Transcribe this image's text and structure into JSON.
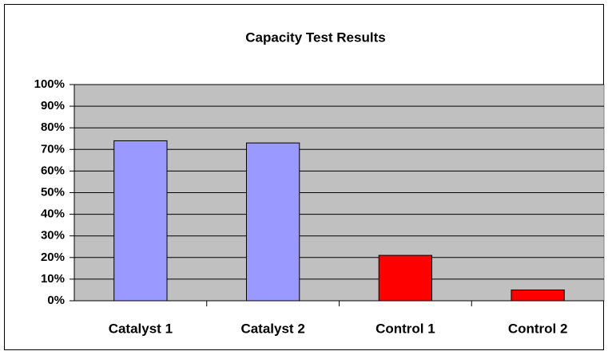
{
  "chart_data": {
    "type": "bar",
    "title": "Capacity Test Results",
    "categories": [
      "Catalyst 1",
      "Catalyst 2",
      "Control 1",
      "Control 2"
    ],
    "values": [
      74,
      73,
      21,
      5
    ],
    "colors": [
      "#9999ff",
      "#9999ff",
      "#ff0000",
      "#ff0000"
    ],
    "ylim": [
      0,
      100
    ],
    "yticks": [
      {
        "value": 0,
        "label": "0%"
      },
      {
        "value": 10,
        "label": "10%"
      },
      {
        "value": 20,
        "label": "20%"
      },
      {
        "value": 30,
        "label": "30%"
      },
      {
        "value": 40,
        "label": "40%"
      },
      {
        "value": 50,
        "label": "50%"
      },
      {
        "value": 60,
        "label": "60%"
      },
      {
        "value": 70,
        "label": "70%"
      },
      {
        "value": 80,
        "label": "80%"
      },
      {
        "value": 90,
        "label": "90%"
      },
      {
        "value": 100,
        "label": "100%"
      }
    ],
    "grid": true,
    "plot_background": "#c0c0c0"
  }
}
